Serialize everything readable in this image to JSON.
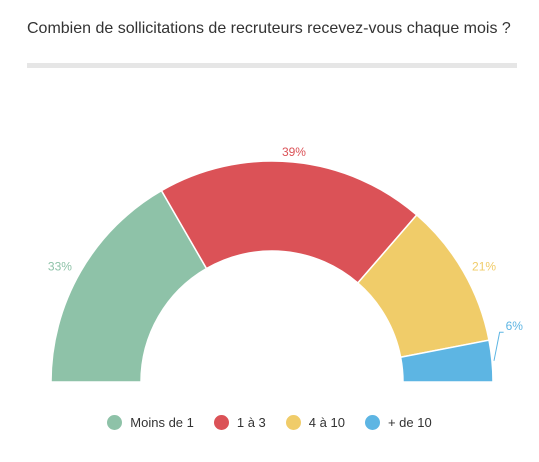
{
  "title": "Combien de sollicitations de recruteurs recevez-vous chaque mois ?",
  "chart_data": {
    "type": "pie",
    "variant": "semi-donut",
    "title": "Combien de sollicitations de recruteurs recevez-vous chaque mois ?",
    "slices": [
      {
        "name": "Moins de 1",
        "value": 33,
        "label": "33%",
        "color": "#8ec2a8"
      },
      {
        "name": "1 à 3",
        "value": 39,
        "label": "39%",
        "color": "#db5257"
      },
      {
        "name": "4 à 10",
        "value": 21,
        "label": "21%",
        "color": "#f0cc69"
      },
      {
        "name": "+ de 10",
        "value": 6,
        "label": "6%",
        "color": "#5db5e3"
      }
    ],
    "legend_position": "bottom"
  }
}
